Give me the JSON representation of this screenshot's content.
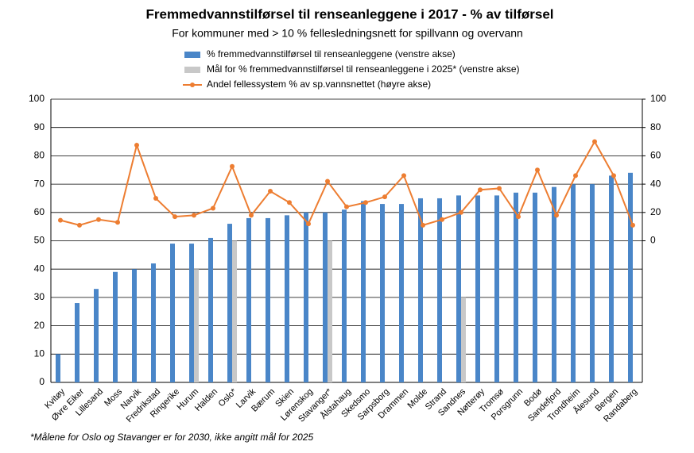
{
  "chart_data": {
    "type": "bar-line",
    "title": "Fremmedvannstilførsel til renseanleggene i 2017 - % av tilførsel",
    "subtitle": "For kommuner med > 10 % fellesledningsnett for spillvann og overvann",
    "footnote": "*Målene for Oslo og Stavanger er for 2030, ikke angitt mål for 2025",
    "categories": [
      "Kvitøy",
      "Øvre Eiker",
      "Lillesand",
      "Moss",
      "Narvik",
      "Fredrikstad",
      "Ringerike",
      "Hurum",
      "Halden",
      "Oslo*",
      "Larvik",
      "Bærum",
      "Skien",
      "Lørenskog",
      "Stavanger*",
      "Ålstahaug",
      "Skedsmo",
      "Sarpsborg",
      "Drammen",
      "Molde",
      "Strand",
      "Sandnes",
      "Nøtterøy",
      "Tromsø",
      "Porsgrunn",
      "Bodø",
      "Sandefjord",
      "Trondheim",
      "Ålesund",
      "Bergen",
      "Randaberg"
    ],
    "series": [
      {
        "name": "% fremmedvannstilførsel til renseanleggene (venstre akse)",
        "color": "#4a86c8",
        "type": "bar",
        "values": [
          10,
          28,
          33,
          39,
          40,
          42,
          49,
          49,
          51,
          56,
          58,
          58,
          59,
          60,
          60,
          61,
          64,
          63,
          63,
          65,
          65,
          66,
          66,
          66,
          67,
          67,
          69,
          70,
          70,
          73,
          74
        ]
      },
      {
        "name": "Mål for % fremmedvannstilførsel til renseanleggene i 2025* (venstre akse)",
        "color": "#c8c8c8",
        "type": "bar",
        "values": [
          null,
          null,
          null,
          null,
          null,
          null,
          null,
          40,
          null,
          50,
          null,
          null,
          null,
          null,
          50,
          null,
          null,
          null,
          null,
          null,
          null,
          30,
          null,
          null,
          null,
          null,
          null,
          null,
          null,
          null,
          null
        ]
      },
      {
        "name": "Andel fellessystem % av sp.vannsnettet (høyre akse)",
        "color": "#ed7d31",
        "type": "line",
        "axis": "y2",
        "values": [
          14.5,
          11,
          15,
          13,
          67.5,
          30,
          17,
          18,
          23,
          52.5,
          18,
          35,
          27,
          12,
          42,
          24,
          27,
          31,
          46,
          11,
          15,
          20,
          36,
          37,
          17,
          50,
          18,
          46,
          70,
          46,
          11
        ]
      }
    ],
    "ylim": [
      0,
      100
    ],
    "yticks": [
      0,
      10,
      20,
      30,
      40,
      50,
      60,
      70,
      80,
      90,
      100
    ],
    "y2lim": [
      -100,
      100
    ],
    "y2ticks": [
      0,
      20,
      40,
      60,
      80,
      100
    ],
    "grid": true
  }
}
